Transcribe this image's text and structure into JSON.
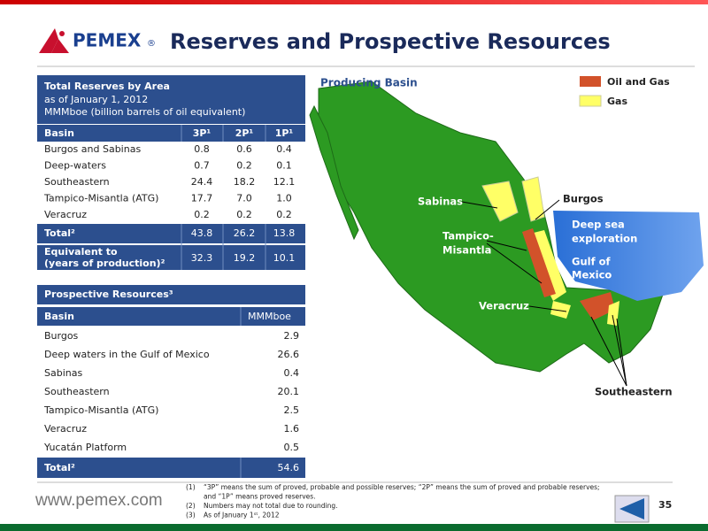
{
  "header": {
    "logo": "PEMEX",
    "registered": "®",
    "title": "Reserves and Prospective Resources"
  },
  "reserves": {
    "title": "Total Reserves by Area",
    "subtitle": [
      "as of January 1, 2012",
      "MMMboe (billion barrels of oil equivalent)"
    ],
    "columns": [
      "Basin",
      "3P¹",
      "2P¹",
      "1P¹"
    ],
    "rows": [
      [
        "Burgos and Sabinas",
        "0.8",
        "0.6",
        "0.4"
      ],
      [
        "Deep-waters",
        "0.7",
        "0.2",
        "0.1"
      ],
      [
        "Southeastern",
        "24.4",
        "18.2",
        "12.1"
      ],
      [
        "Tampico-Misantla (ATG)",
        "17.7",
        "7.0",
        "1.0"
      ],
      [
        "Veracruz",
        "0.2",
        "0.2",
        "0.2"
      ]
    ],
    "total": [
      "Total²",
      "43.8",
      "26.2",
      "13.8"
    ],
    "equivalent": {
      "label": [
        "Equivalent to",
        "(years of production)²"
      ],
      "values": [
        "32.3",
        "19.2",
        "10.1"
      ]
    }
  },
  "prospective": {
    "title": "Prospective Resources³",
    "columns": [
      "Basin",
      "MMMboe"
    ],
    "rows": [
      [
        "Burgos",
        "2.9"
      ],
      [
        "Deep waters in the Gulf of Mexico",
        "26.6"
      ],
      [
        "Sabinas",
        "0.4"
      ],
      [
        "Southeastern",
        "20.1"
      ],
      [
        "Tampico-Misantla (ATG)",
        "2.5"
      ],
      [
        "Veracruz",
        "1.6"
      ],
      [
        "Yucatán Platform",
        "0.5"
      ]
    ],
    "total": [
      "Total²",
      "54.6"
    ]
  },
  "map": {
    "title": "Producing Basin",
    "legend": [
      "Oil and Gas",
      "Gas"
    ],
    "labels": {
      "sabinas": "Sabinas",
      "burgos": "Burgos",
      "deep_sea": [
        "Deep sea",
        "exploration"
      ],
      "tampico": [
        "Tampico-",
        "Misantla"
      ],
      "gulf": [
        "Gulf of",
        "Mexico"
      ],
      "veracruz": "Veracruz",
      "southeastern": "Southeastern"
    }
  },
  "footer": {
    "url": "www.pemex.com",
    "notes": [
      {
        "marker": "(1)",
        "lines": [
          "“3P” means the sum of proved, probable and possible reserves; “2P” means the sum of proved and probable reserves;",
          "and “1P” means proved reserves."
        ]
      },
      {
        "marker": "(2)",
        "lines": [
          "Numbers may not total due to rounding."
        ]
      },
      {
        "marker": "(3)",
        "lines": [
          "As of January 1ˢᵗ, 2012"
        ]
      }
    ],
    "page": "35"
  }
}
